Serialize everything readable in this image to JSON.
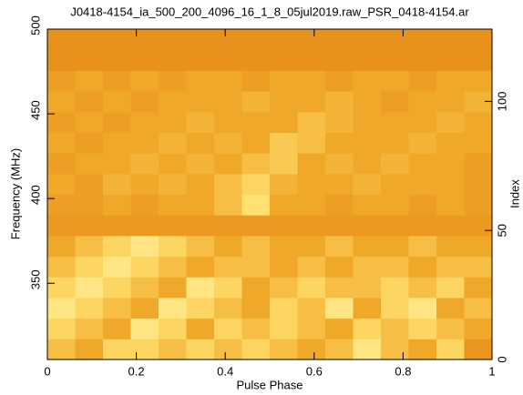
{
  "chart_data": {
    "type": "heatmap",
    "title": "J0418-4154_ia_500_200_4096_16_1_8_05jul2019.raw_PSR_0418-4154.ar",
    "x_label": "Pulse Phase",
    "y_label": "Frequency (MHz)",
    "y2_label": "Index",
    "xlim": [
      0,
      1
    ],
    "xticks": [
      0,
      0.2,
      0.4,
      0.6,
      0.8,
      1
    ],
    "ylim": [
      305,
      500
    ],
    "yticks": [
      350,
      400,
      450,
      500
    ],
    "y2lim": [
      0,
      128
    ],
    "y2ticks": [
      0,
      50,
      100
    ],
    "colormap": [
      "#a02800",
      "#e07a10",
      "#f0a828",
      "#ffe070",
      "#fffad0"
    ],
    "values": [
      [
        0.6,
        0.5,
        0.7,
        0.7,
        0.6,
        0.7,
        0.6,
        0.7,
        0.6,
        0.5,
        0.6,
        0.8,
        0.6,
        0.5,
        0.7,
        0.4
      ],
      [
        0.7,
        0.6,
        0.5,
        0.8,
        0.7,
        0.5,
        0.7,
        0.6,
        0.7,
        0.6,
        0.5,
        0.7,
        0.6,
        0.7,
        0.6,
        0.5
      ],
      [
        0.8,
        0.7,
        0.6,
        0.5,
        0.8,
        0.7,
        0.6,
        0.5,
        0.7,
        0.6,
        0.8,
        0.5,
        0.7,
        0.8,
        0.5,
        0.6
      ],
      [
        0.7,
        0.8,
        0.7,
        0.6,
        0.5,
        0.8,
        0.7,
        0.5,
        0.6,
        0.7,
        0.6,
        0.6,
        0.7,
        0.6,
        0.7,
        0.5
      ],
      [
        0.6,
        0.7,
        0.8,
        0.7,
        0.6,
        0.5,
        0.6,
        0.6,
        0.5,
        0.6,
        0.5,
        0.6,
        0.6,
        0.5,
        0.6,
        0.6
      ],
      [
        0.5,
        0.6,
        0.7,
        0.8,
        0.7,
        0.6,
        0.5,
        0.6,
        0.5,
        0.5,
        0.6,
        0.5,
        0.5,
        0.6,
        0.5,
        0.5
      ],
      [
        0.42,
        0.42,
        0.42,
        0.42,
        0.42,
        0.42,
        0.42,
        0.42,
        0.42,
        0.42,
        0.42,
        0.42,
        0.42,
        0.42,
        0.42,
        0.42
      ],
      [
        0.45,
        0.45,
        0.5,
        0.45,
        0.5,
        0.5,
        0.6,
        0.75,
        0.5,
        0.5,
        0.45,
        0.5,
        0.5,
        0.45,
        0.5,
        0.45
      ],
      [
        0.5,
        0.45,
        0.55,
        0.5,
        0.55,
        0.5,
        0.6,
        0.7,
        0.55,
        0.5,
        0.5,
        0.55,
        0.5,
        0.5,
        0.5,
        0.45
      ],
      [
        0.45,
        0.5,
        0.5,
        0.55,
        0.5,
        0.55,
        0.5,
        0.6,
        0.65,
        0.5,
        0.55,
        0.5,
        0.55,
        0.5,
        0.5,
        0.45
      ],
      [
        0.5,
        0.45,
        0.5,
        0.5,
        0.55,
        0.5,
        0.55,
        0.5,
        0.65,
        0.6,
        0.5,
        0.5,
        0.5,
        0.55,
        0.5,
        0.5
      ],
      [
        0.45,
        0.5,
        0.45,
        0.5,
        0.5,
        0.55,
        0.5,
        0.5,
        0.5,
        0.6,
        0.55,
        0.5,
        0.5,
        0.5,
        0.55,
        0.5
      ],
      [
        0.5,
        0.45,
        0.5,
        0.45,
        0.5,
        0.5,
        0.5,
        0.55,
        0.5,
        0.5,
        0.55,
        0.5,
        0.45,
        0.5,
        0.5,
        0.55
      ],
      [
        0.45,
        0.5,
        0.45,
        0.5,
        0.45,
        0.5,
        0.5,
        0.45,
        0.5,
        0.5,
        0.45,
        0.5,
        0.5,
        0.45,
        0.5,
        0.5
      ],
      [
        0.38,
        0.38,
        0.38,
        0.38,
        0.38,
        0.38,
        0.38,
        0.38,
        0.38,
        0.38,
        0.38,
        0.38,
        0.38,
        0.38,
        0.38,
        0.38
      ],
      [
        0.38,
        0.38,
        0.38,
        0.38,
        0.38,
        0.38,
        0.38,
        0.38,
        0.38,
        0.38,
        0.38,
        0.38,
        0.38,
        0.38,
        0.38,
        0.38
      ]
    ]
  }
}
